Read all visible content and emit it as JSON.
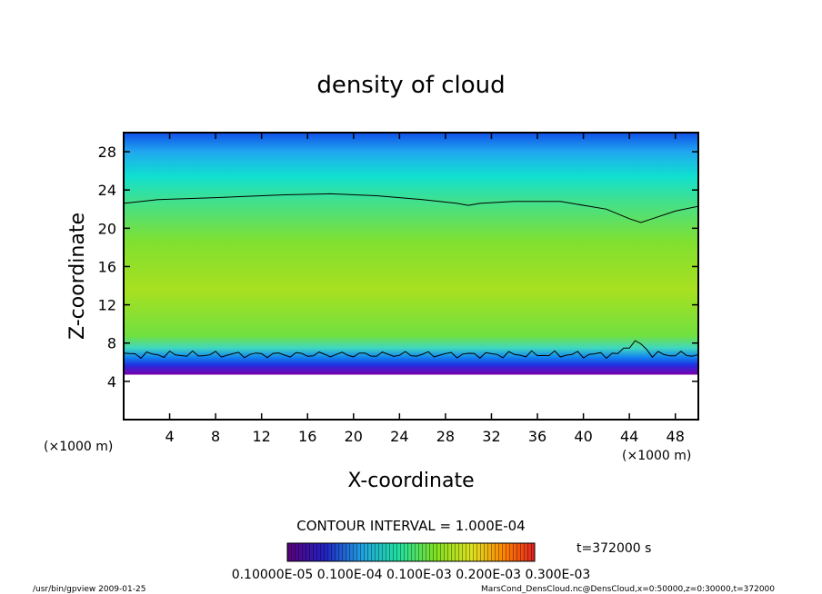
{
  "chart_data": {
    "type": "heatmap",
    "title": "density of cloud",
    "xlabel": "X-coordinate",
    "ylabel": "Z-coordinate",
    "x_unit": "(×1000 m)",
    "x_unit_right": "(×1000 m)",
    "xlim": [
      0,
      50
    ],
    "ylim": [
      0,
      30
    ],
    "x_ticks": [
      4,
      8,
      12,
      16,
      20,
      24,
      28,
      32,
      36,
      40,
      44,
      48
    ],
    "y_ticks": [
      4,
      8,
      12,
      16,
      20,
      24,
      28
    ],
    "contour_interval_label": "CONTOUR INTERVAL = 1.000E-04",
    "time_label": "t=372000 s",
    "colorbar_labels": "0.10000E-05 0.100E-04 0.100E-03 0.200E-03 0.300E-03",
    "cloud_base_z": 5,
    "cloud_top_z": [
      [
        0,
        22.6
      ],
      [
        3,
        23.0
      ],
      [
        8,
        23.2
      ],
      [
        14,
        23.5
      ],
      [
        18,
        23.6
      ],
      [
        22,
        23.4
      ],
      [
        26,
        23.0
      ],
      [
        29,
        22.6
      ],
      [
        30,
        22.4
      ],
      [
        31,
        22.6
      ],
      [
        34,
        22.8
      ],
      [
        38,
        22.8
      ],
      [
        42,
        22.0
      ],
      [
        44,
        21.0
      ],
      [
        45,
        20.6
      ],
      [
        46,
        21.0
      ],
      [
        48,
        21.8
      ],
      [
        50,
        22.3
      ]
    ],
    "colormap": [
      "#7a00a8",
      "#2020e0",
      "#00c8ff",
      "#20e0a0",
      "#80e020",
      "#e0e020",
      "#ff8000",
      "#e02020"
    ]
  },
  "footer": {
    "left": "/usr/bin/gpview  2009-01-25",
    "right": "MarsCond_DensCloud.nc@DensCloud,x=0:50000,z=0:30000,t=372000"
  }
}
